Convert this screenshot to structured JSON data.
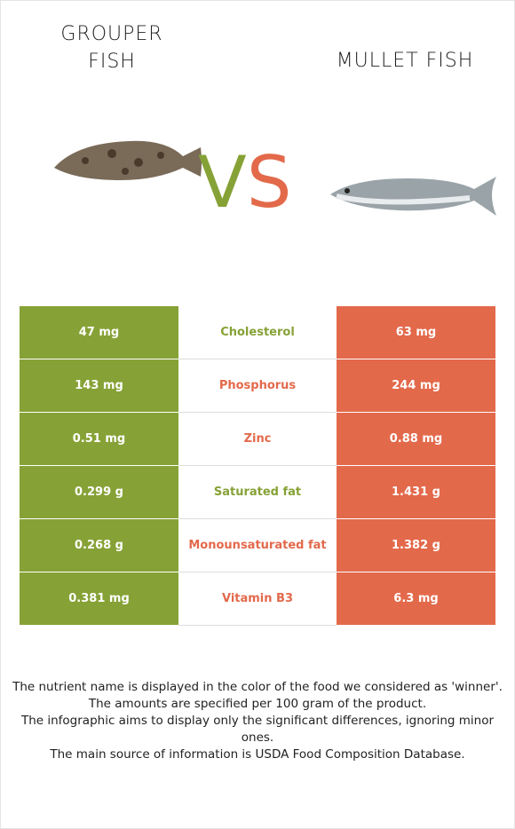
{
  "header": {
    "left_title": "GROUPER FISH",
    "right_title": "MULLET FISH",
    "vs": [
      "V",
      "S"
    ]
  },
  "colors": {
    "left": "#86a236",
    "right": "#e3694b"
  },
  "table": {
    "rows": [
      {
        "left": "47 mg",
        "nutrient": "Cholesterol",
        "right": "63 mg",
        "winner": "left"
      },
      {
        "left": "143 mg",
        "nutrient": "Phosphorus",
        "right": "244 mg",
        "winner": "right"
      },
      {
        "left": "0.51 mg",
        "nutrient": "Zinc",
        "right": "0.88 mg",
        "winner": "right"
      },
      {
        "left": "0.299 g",
        "nutrient": "Saturated fat",
        "right": "1.431 g",
        "winner": "left"
      },
      {
        "left": "0.268 g",
        "nutrient": "Monounsaturated fat",
        "right": "1.382 g",
        "winner": "right"
      },
      {
        "left": "0.381 mg",
        "nutrient": "Vitamin B3",
        "right": "6.3 mg",
        "winner": "right"
      }
    ]
  },
  "footer": {
    "lines": [
      "The nutrient name is displayed in the color of the food we considered as 'winner'.",
      "The amounts are specified per 100 gram of the product.",
      "The infographic aims to display only the significant differences, ignoring minor ones.",
      "The main source of information is USDA Food Composition Database."
    ]
  }
}
